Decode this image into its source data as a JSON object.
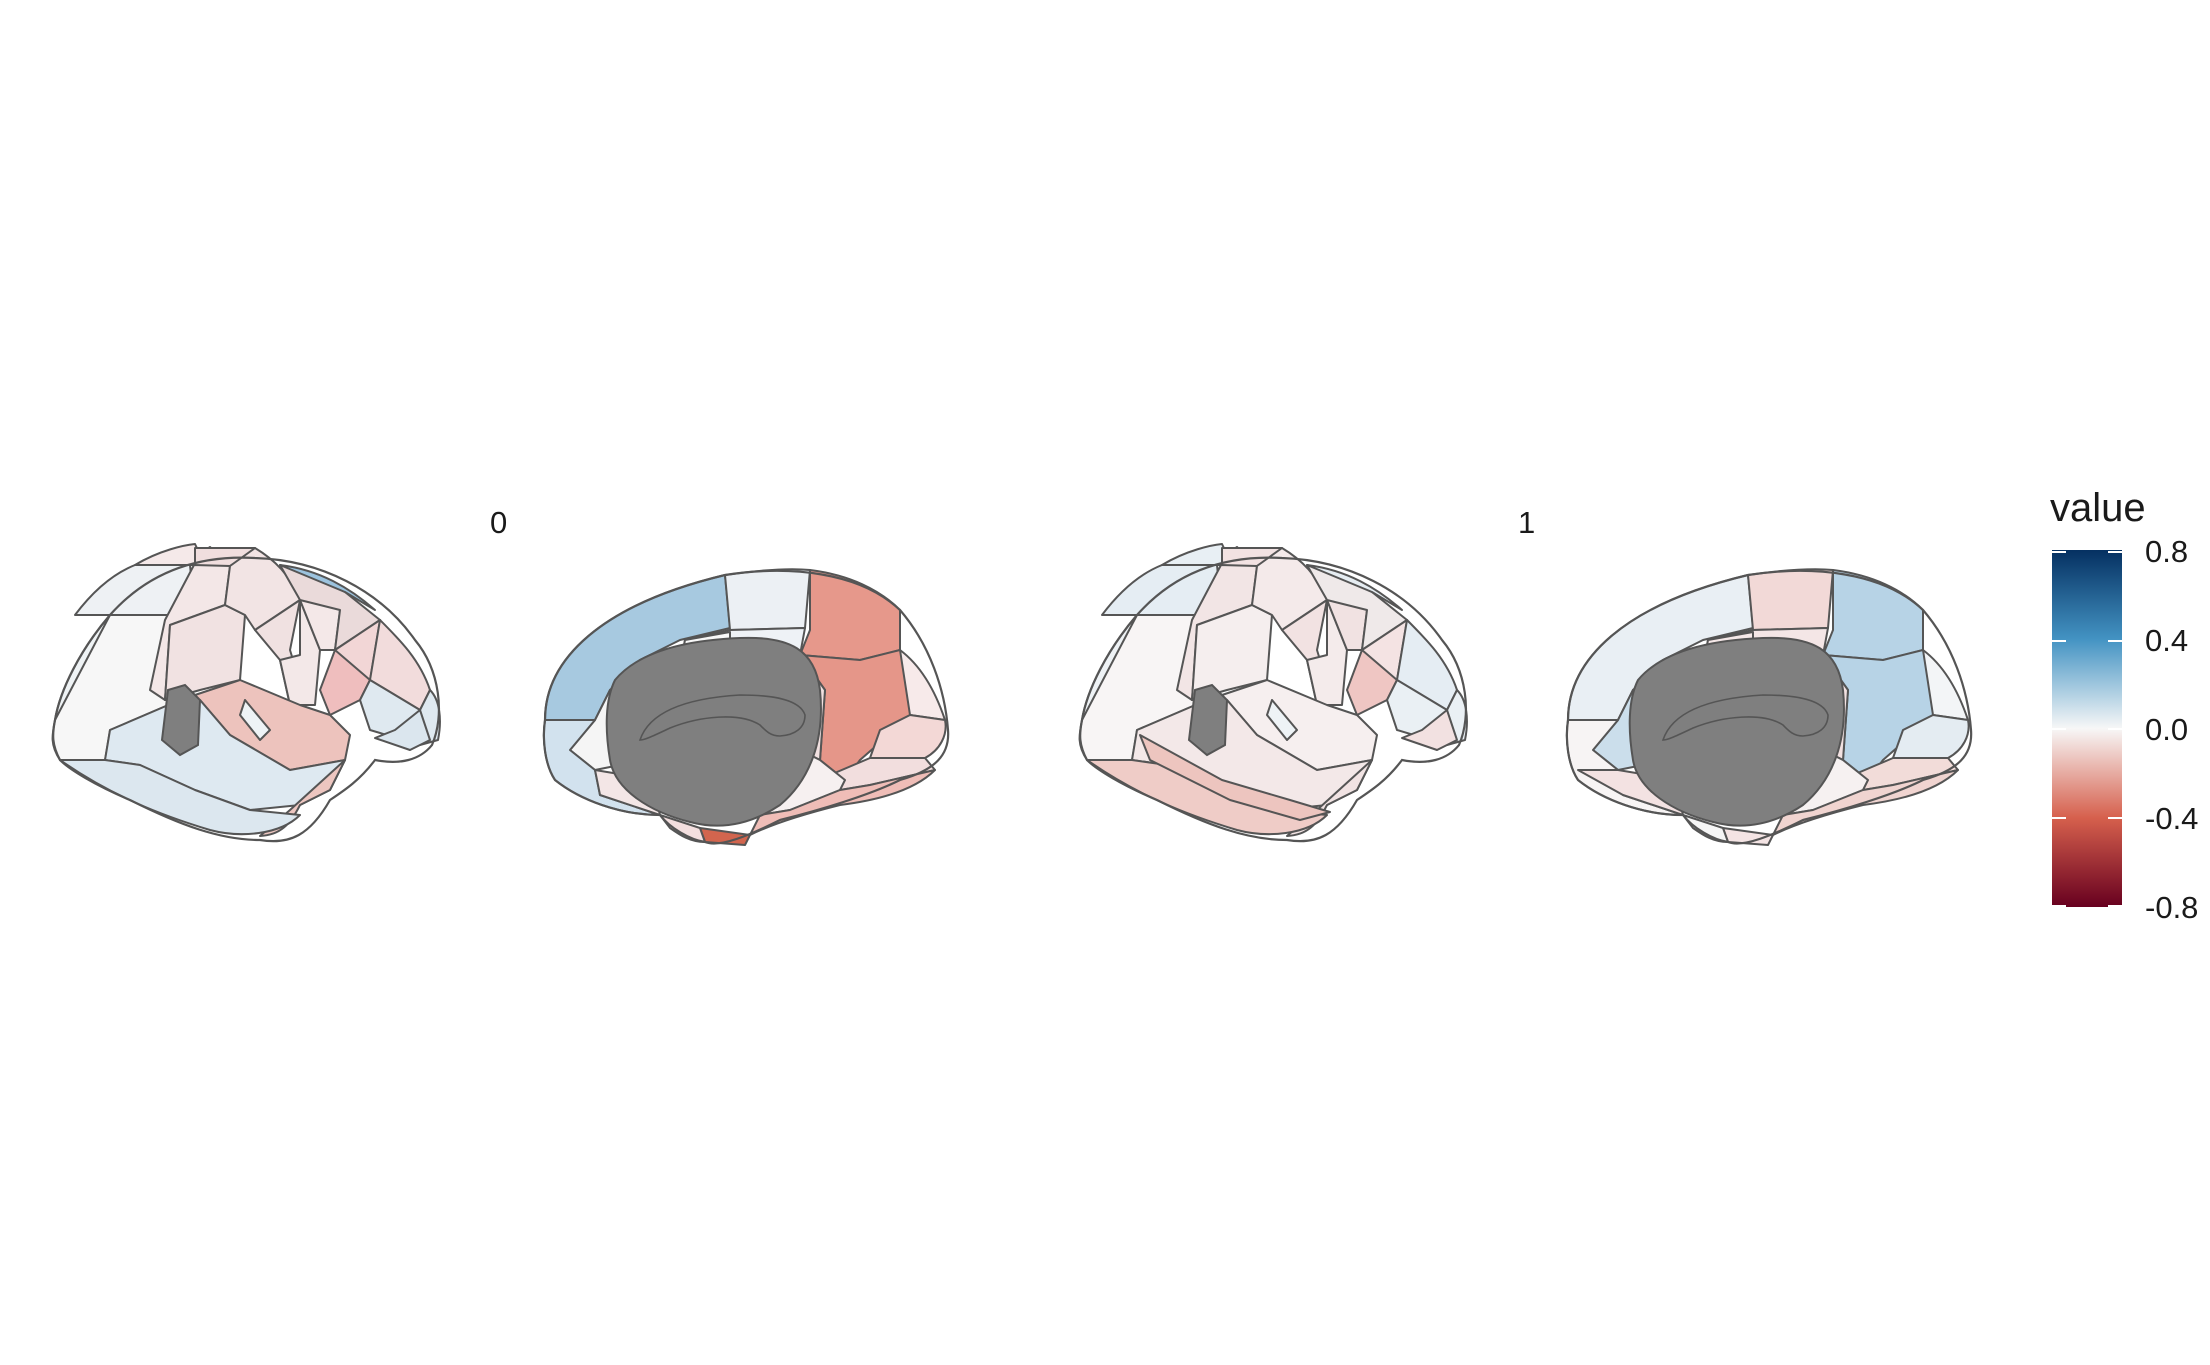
{
  "facets": [
    {
      "label": "0"
    },
    {
      "label": "1"
    }
  ],
  "legend": {
    "title": "value",
    "ticks": [
      "0.8",
      "0.4",
      "0.0",
      "-0.4",
      "-0.8"
    ],
    "tick_values": [
      0.8,
      0.4,
      0.0,
      -0.4,
      -0.8
    ],
    "range": [
      -0.8,
      0.8
    ],
    "colors": {
      "high": "#053061",
      "mid_high": "#4393c3",
      "mid": "#f7f7f7",
      "mid_low": "#d6604d",
      "low": "#67001f"
    }
  },
  "medial_wall_color": "#7f7f7f",
  "views": [
    "lateral",
    "medial"
  ]
}
